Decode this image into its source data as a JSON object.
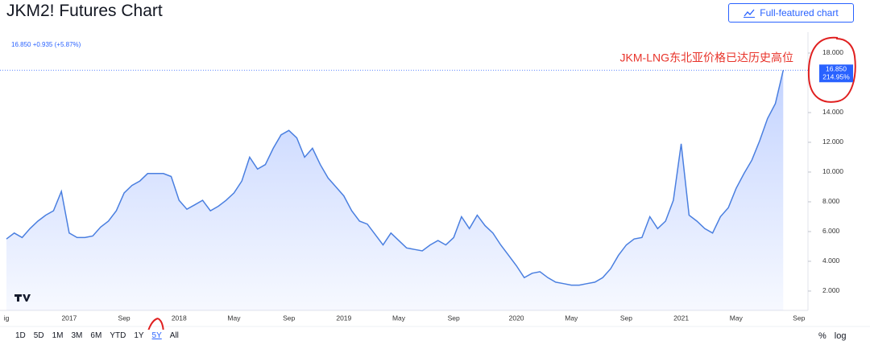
{
  "header": {
    "title": "JKM2! Futures Chart",
    "button": "Full-featured chart",
    "quote": "16.850 +0.935 (+5.87%)"
  },
  "chart_data": {
    "type": "line",
    "annotation": "JKM-LNG东北亚价格已达历史高位",
    "price_label": "16.850",
    "change_label": "214.95%",
    "color": "#4a7fe0",
    "categories": [
      "ig",
      null,
      null,
      null,
      null,
      null,
      null,
      null,
      "2017",
      null,
      null,
      null,
      null,
      null,
      null,
      "Sep",
      null,
      null,
      null,
      null,
      null,
      null,
      "2018",
      null,
      null,
      null,
      null,
      null,
      null,
      "May",
      null,
      null,
      null,
      null,
      null,
      null,
      "Sep",
      null,
      null,
      null,
      null,
      null,
      null,
      "2019",
      null,
      null,
      null,
      null,
      null,
      null,
      "May",
      null,
      null,
      null,
      null,
      null,
      null,
      "Sep",
      null,
      null,
      null,
      null,
      null,
      null,
      null,
      "2020",
      null,
      null,
      null,
      null,
      null,
      null,
      "May",
      null,
      null,
      null,
      null,
      null,
      null,
      "Sep",
      null,
      null,
      null,
      null,
      null,
      null,
      "2021",
      null,
      null,
      null,
      null,
      null,
      null,
      "May",
      null,
      null,
      null,
      null,
      null,
      null,
      null,
      "Sep",
      null,
      null
    ],
    "values": [
      5.5,
      5.9,
      5.6,
      6.2,
      6.7,
      7.1,
      7.4,
      8.7,
      5.9,
      5.6,
      5.6,
      5.7,
      6.3,
      6.7,
      7.4,
      8.6,
      9.1,
      9.4,
      9.9,
      9.9,
      9.9,
      9.7,
      8.1,
      7.5,
      7.8,
      8.1,
      7.4,
      7.7,
      8.1,
      8.6,
      9.4,
      11.0,
      10.2,
      10.5,
      11.6,
      12.5,
      12.8,
      12.3,
      11.0,
      11.6,
      10.5,
      9.6,
      9.0,
      8.4,
      7.4,
      6.7,
      6.5,
      5.8,
      5.1,
      5.9,
      5.4,
      4.9,
      4.8,
      4.7,
      5.1,
      5.4,
      5.1,
      5.6,
      7.0,
      6.2,
      7.1,
      6.4,
      5.9,
      5.1,
      4.4,
      3.7,
      2.9,
      3.2,
      3.3,
      2.9,
      2.6,
      2.5,
      2.4,
      2.4,
      2.5,
      2.6,
      2.9,
      3.5,
      4.4,
      5.1,
      5.5,
      5.6,
      7.0,
      6.2,
      6.7,
      8.1,
      11.9,
      7.1,
      6.7,
      6.2,
      5.9,
      7.0,
      7.6,
      8.9,
      9.9,
      10.8,
      12.1,
      13.6,
      14.6,
      16.85,
      null,
      null,
      null,
      null
    ],
    "ylim": [
      0.7,
      19.1
    ],
    "yticks": [
      {
        "value": 2,
        "label": "2.000"
      },
      {
        "value": 4,
        "label": "4.000"
      },
      {
        "value": 6,
        "label": "6.000"
      },
      {
        "value": 8,
        "label": "8.000"
      },
      {
        "value": 10,
        "label": "10.000"
      },
      {
        "value": 12,
        "label": "12.000"
      },
      {
        "value": 14,
        "label": "14.000"
      },
      {
        "value": 18,
        "label": "18.000"
      }
    ]
  },
  "toolbar": {
    "ranges": [
      "1D",
      "5D",
      "1M",
      "3M",
      "6M",
      "YTD",
      "1Y",
      "5Y",
      "All"
    ],
    "scale": [
      "%",
      "log"
    ]
  }
}
